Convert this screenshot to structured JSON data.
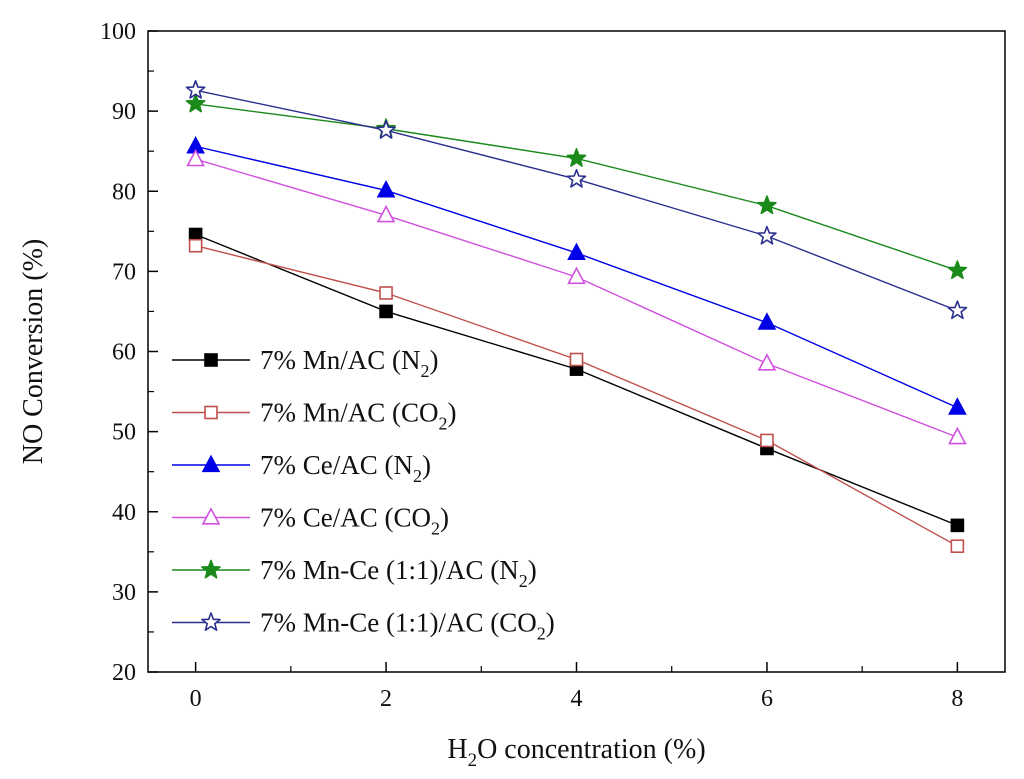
{
  "chart_data": {
    "type": "line",
    "title": "",
    "xlabel": {
      "prefix": "H",
      "sub": "2",
      "suffix": "O concentration (%)"
    },
    "ylabel": "NO Conversion (%)",
    "x": [
      0,
      2,
      4,
      6,
      8
    ],
    "xlim": [
      -0.5,
      8.5
    ],
    "ylim": [
      20,
      100
    ],
    "xticks": [
      0,
      2,
      4,
      6,
      8
    ],
    "yticks": [
      20,
      30,
      40,
      50,
      60,
      70,
      80,
      90,
      100
    ],
    "grid": false,
    "legend_position": "lower-left",
    "series": [
      {
        "name": "7% Mn/AC (N2)",
        "label_prefix": "7% Mn/AC (N",
        "label_sub": "2",
        "label_suffix": ")",
        "marker": "square-filled",
        "color": "#000000",
        "values": [
          74.6,
          65.0,
          57.8,
          47.9,
          38.3
        ]
      },
      {
        "name": "7% Mn/AC (CO2)",
        "label_prefix": "7% Mn/AC (CO",
        "label_sub": "2",
        "label_suffix": ")",
        "marker": "square-open",
        "color": "#c0504d",
        "values": [
          73.2,
          67.3,
          59.0,
          48.9,
          35.7
        ]
      },
      {
        "name": "7% Ce/AC (N2)",
        "label_prefix": "7% Ce/AC (N",
        "label_sub": "2",
        "label_suffix": ")",
        "marker": "triangle-filled",
        "color": "#0000e6",
        "values": [
          85.6,
          80.1,
          72.3,
          63.6,
          53.0
        ]
      },
      {
        "name": "7% Ce/AC (CO2)",
        "label_prefix": "7% Ce/AC (CO",
        "label_sub": "2",
        "label_suffix": ")",
        "marker": "triangle-open",
        "color": "#d050e0",
        "values": [
          84.0,
          77.0,
          69.3,
          58.5,
          49.3
        ]
      },
      {
        "name": "7% Mn-Ce (1:1)/AC (N2)",
        "label_prefix": "7% Mn-Ce (1:1)/AC (N",
        "label_sub": "2",
        "label_suffix": ")",
        "marker": "star-filled",
        "color": "#1a8a1a",
        "values": [
          90.9,
          87.8,
          84.1,
          78.2,
          70.1
        ]
      },
      {
        "name": "7% Mn-Ce (1:1)/AC (CO2)",
        "label_prefix": "7% Mn-Ce (1:1)/AC (CO",
        "label_sub": "2",
        "label_suffix": ")",
        "marker": "star-open",
        "color": "#2a2f8f",
        "values": [
          92.6,
          87.6,
          81.5,
          74.4,
          65.1
        ]
      }
    ]
  }
}
